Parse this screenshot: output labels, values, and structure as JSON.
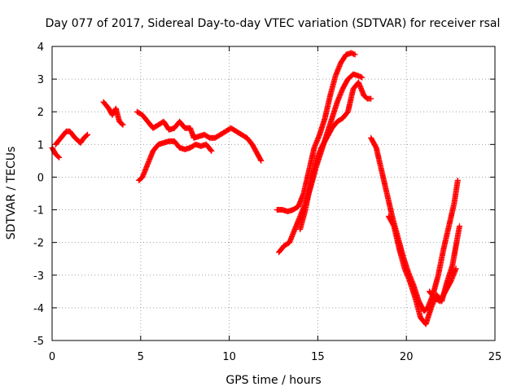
{
  "chart_data": {
    "type": "scatter",
    "title": "Day 077 of 2017, Sidereal Day-to-day VTEC variation (SDTVAR) for receiver rsal",
    "xlabel": "GPS time / hours",
    "ylabel": "SDTVAR / TECUs",
    "xlim": [
      0,
      25
    ],
    "ylim": [
      -5,
      4
    ],
    "xticks": [
      0,
      5,
      10,
      15,
      20,
      25
    ],
    "yticks": [
      -5,
      -4,
      -3,
      -2,
      -1,
      0,
      1,
      2,
      3,
      4
    ],
    "grid": true,
    "marker": "+",
    "colors": {
      "series": "#ff0000",
      "grid": "#a0a0a0",
      "axes": "#000000"
    },
    "tracks": [
      {
        "x": [
          0.0,
          0.1,
          0.2,
          0.3,
          0.4
        ],
        "y": [
          0.9,
          0.8,
          0.7,
          0.65,
          0.6
        ]
      },
      {
        "x": [
          0.2,
          0.5,
          0.8,
          1.0,
          1.3,
          1.6,
          1.8,
          2.0
        ],
        "y": [
          1.0,
          1.2,
          1.4,
          1.4,
          1.2,
          1.05,
          1.2,
          1.3
        ]
      },
      {
        "x": [
          2.9,
          3.2,
          3.4,
          3.6,
          3.8,
          4.0
        ],
        "y": [
          2.3,
          2.1,
          1.9,
          2.1,
          1.7,
          1.6
        ]
      },
      {
        "x": [
          4.8,
          5.1,
          5.4,
          5.7,
          6.0,
          6.3,
          6.6,
          6.9,
          7.2,
          7.5,
          7.8,
          8.0,
          8.3,
          8.6,
          8.9,
          9.2,
          9.5,
          9.8,
          10.1,
          10.4,
          10.7,
          11.0,
          11.3,
          11.6,
          11.8
        ],
        "y": [
          2.0,
          1.9,
          1.7,
          1.5,
          1.6,
          1.7,
          1.45,
          1.5,
          1.7,
          1.5,
          1.5,
          1.2,
          1.25,
          1.3,
          1.2,
          1.2,
          1.3,
          1.4,
          1.5,
          1.4,
          1.3,
          1.2,
          1.0,
          0.7,
          0.5
        ]
      },
      {
        "x": [
          4.9,
          5.1,
          5.4,
          5.7,
          6.0,
          6.3,
          6.6,
          6.9,
          7.2,
          7.5,
          7.8,
          8.1,
          8.4,
          8.7,
          9.0
        ],
        "y": [
          -0.1,
          0.0,
          0.4,
          0.8,
          1.0,
          1.05,
          1.1,
          1.1,
          0.9,
          0.85,
          0.9,
          1.0,
          0.95,
          1.0,
          0.8
        ]
      },
      {
        "x": [
          12.7,
          13.0,
          13.3,
          13.6,
          13.9,
          14.2,
          14.5,
          14.8,
          15.1,
          15.4,
          15.7,
          16.0,
          16.3,
          16.6,
          16.9,
          17.1
        ],
        "y": [
          -1.0,
          -1.0,
          -1.05,
          -1.0,
          -0.9,
          -0.5,
          0.2,
          0.9,
          1.3,
          1.8,
          2.5,
          3.1,
          3.5,
          3.75,
          3.8,
          3.75
        ]
      },
      {
        "x": [
          12.8,
          13.1,
          13.4,
          13.7,
          14.0,
          14.3,
          14.6,
          14.9,
          15.2,
          15.5,
          15.8,
          16.1,
          16.4,
          16.7,
          17.0,
          17.3,
          17.5
        ],
        "y": [
          -2.3,
          -2.1,
          -2.0,
          -1.6,
          -1.2,
          -0.8,
          -0.3,
          0.3,
          0.8,
          1.3,
          1.8,
          2.3,
          2.7,
          3.0,
          3.15,
          3.1,
          3.05
        ]
      },
      {
        "x": [
          14.0,
          14.3,
          14.6,
          14.9,
          15.2,
          15.5,
          15.8,
          16.1,
          16.4,
          16.7,
          17.0,
          17.3,
          17.6,
          17.8,
          18.0
        ],
        "y": [
          -1.6,
          -1.0,
          -0.2,
          0.5,
          0.9,
          1.2,
          1.5,
          1.7,
          1.8,
          2.0,
          2.7,
          2.9,
          2.5,
          2.4,
          2.4
        ]
      },
      {
        "x": [
          18.0,
          18.3,
          18.6,
          18.9,
          19.2,
          19.5,
          19.8,
          20.1,
          20.4,
          20.7,
          21.0,
          21.2,
          21.5,
          21.8,
          22.1,
          22.4,
          22.7,
          22.9
        ],
        "y": [
          1.2,
          0.9,
          0.2,
          -0.5,
          -1.2,
          -1.8,
          -2.4,
          -2.9,
          -3.3,
          -3.8,
          -4.1,
          -4.0,
          -3.6,
          -3.0,
          -2.2,
          -1.5,
          -0.8,
          -0.1
        ]
      },
      {
        "x": [
          19.0,
          19.3,
          19.6,
          19.9,
          20.2,
          20.5,
          20.8,
          21.1,
          21.4,
          21.7,
          22.0,
          22.3,
          22.6,
          22.8,
          23.0
        ],
        "y": [
          -1.2,
          -1.5,
          -2.2,
          -2.8,
          -3.2,
          -3.7,
          -4.3,
          -4.5,
          -4.0,
          -3.6,
          -3.8,
          -3.2,
          -2.7,
          -2.1,
          -1.5
        ]
      },
      {
        "x": [
          21.3,
          21.6,
          21.9,
          22.2,
          22.5,
          22.8
        ],
        "y": [
          -3.5,
          -3.7,
          -3.8,
          -3.5,
          -3.2,
          -2.8
        ]
      }
    ]
  }
}
